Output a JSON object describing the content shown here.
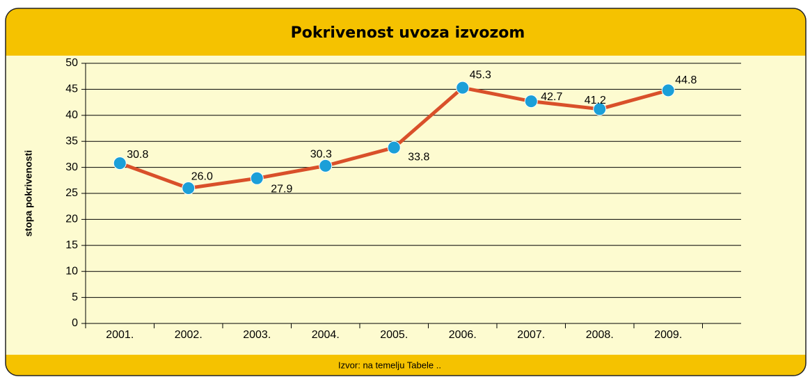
{
  "chart_data": {
    "type": "line",
    "title": "Pokrivenost uvoza izvozom",
    "ylabel": "stopa pokrivenosti",
    "source": "Izvor: na temelju Tabele ..",
    "categories": [
      "2001.",
      "2002.",
      "2003.",
      "2004.",
      "2005.",
      "2006.",
      "2007.",
      "2008.",
      "2009."
    ],
    "series": [
      {
        "name": "stopa pokrivenosti",
        "color": "#d9502a",
        "marker_color": "#1b9fd8",
        "values": [
          30.8,
          26.0,
          27.9,
          30.3,
          33.8,
          45.3,
          42.7,
          41.2,
          44.8
        ],
        "value_labels": [
          "30.8",
          "26.0",
          "27.9",
          "30.3",
          "33.8",
          "45.3",
          "42.7",
          "41.2",
          "44.8"
        ]
      }
    ],
    "ylim": [
      0,
      50
    ],
    "yticks": [
      0,
      5,
      10,
      15,
      20,
      25,
      30,
      35,
      40,
      45,
      50
    ],
    "grid": true
  }
}
